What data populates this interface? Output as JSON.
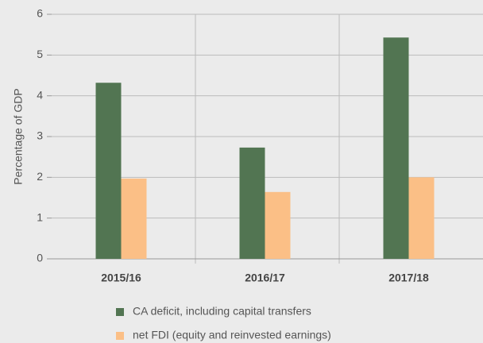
{
  "chart_data": {
    "type": "bar",
    "categories": [
      "2015/16",
      "2016/17",
      "2017/18"
    ],
    "series": [
      {
        "name": "CA deficit, including capital transfers",
        "color": "#527552",
        "values": [
          4.32,
          2.73,
          5.43
        ]
      },
      {
        "name": "net FDI (equity and reinvested earnings)",
        "color": "#fbbf86",
        "values": [
          1.97,
          1.64,
          2.0
        ]
      }
    ],
    "y_label": "Percentage of GDP",
    "ylim": [
      0,
      6
    ],
    "yticks": [
      0,
      1,
      2,
      3,
      4,
      5,
      6
    ],
    "grid": true
  }
}
